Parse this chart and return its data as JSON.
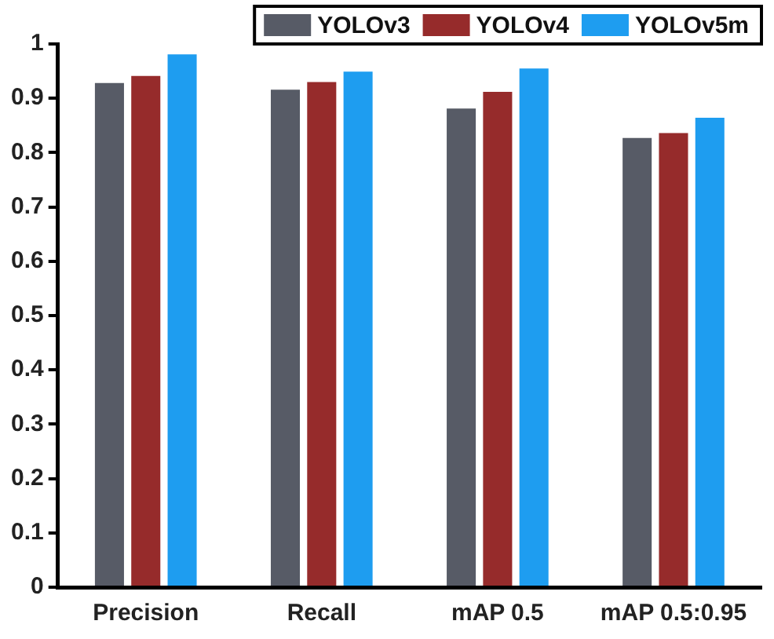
{
  "chart_data": {
    "type": "bar",
    "categories": [
      "Precision",
      "Recall",
      "mAP 0.5",
      "mAP 0.5:0.95"
    ],
    "series": [
      {
        "name": "YOLOv3",
        "color": "#575b66",
        "values": [
          0.928,
          0.916,
          0.881,
          0.827
        ]
      },
      {
        "name": "YOLOv4",
        "color": "#962b2b",
        "values": [
          0.941,
          0.93,
          0.912,
          0.836
        ]
      },
      {
        "name": "YOLOv5m",
        "color": "#1e9df0",
        "values": [
          0.981,
          0.949,
          0.955,
          0.864
        ]
      }
    ],
    "ylim": [
      0,
      1
    ],
    "yticks": [
      0,
      0.1,
      0.2,
      0.3,
      0.4,
      0.5,
      0.6,
      0.7,
      0.8,
      0.9,
      1
    ],
    "grid": false,
    "legend": "top right"
  }
}
